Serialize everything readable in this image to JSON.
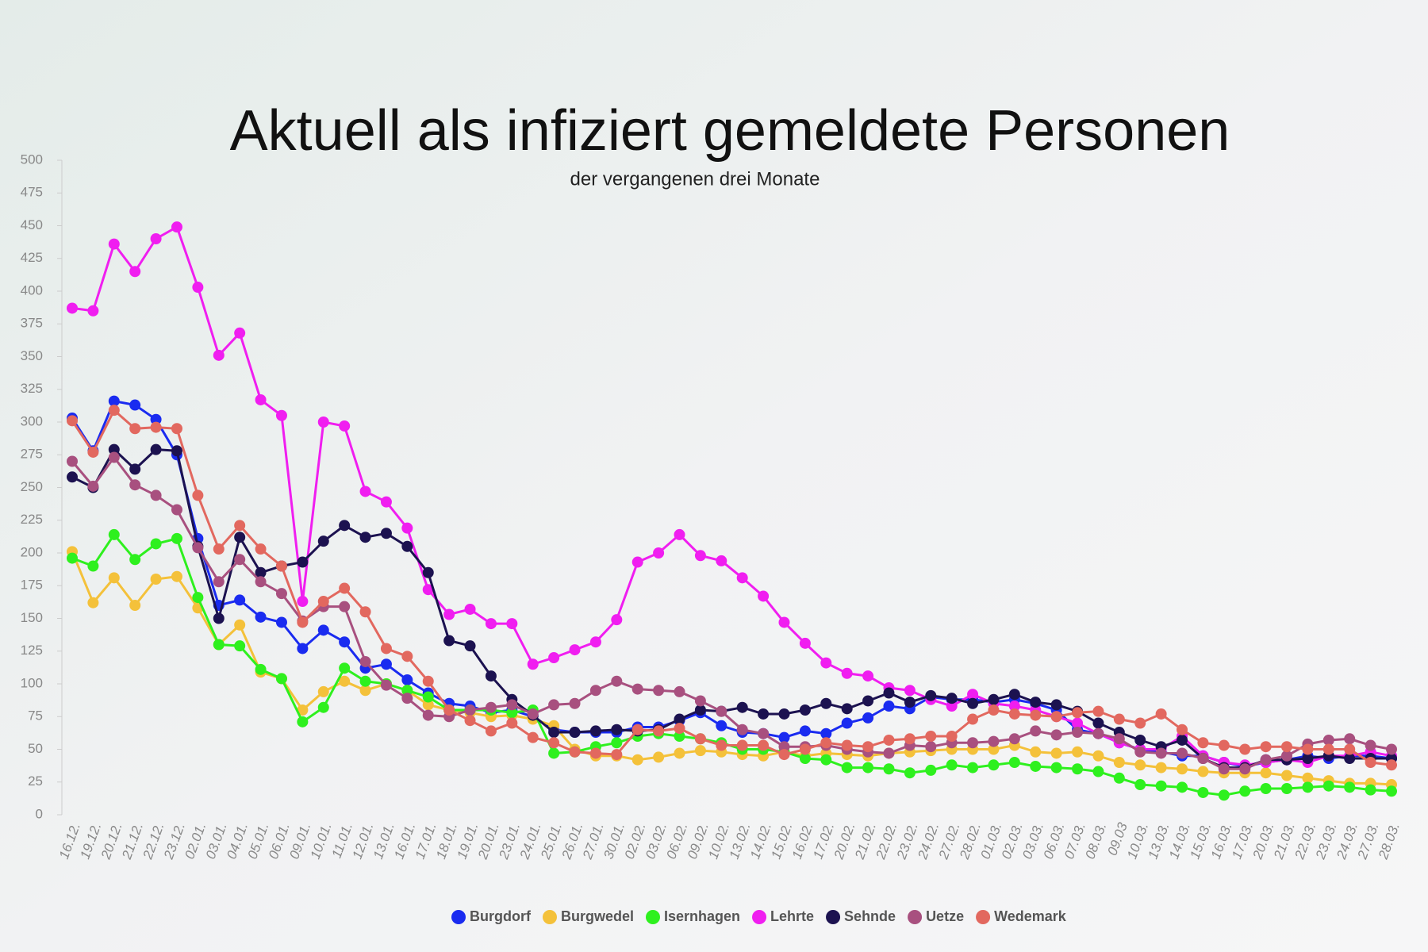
{
  "chart_data": {
    "type": "line",
    "title": "Aktuell als infiziert gemeldete Personen",
    "subtitle": "der vergangenen drei Monate",
    "categories": [
      "16.12.",
      "19.12.",
      "20.12.",
      "21.12.",
      "22.12.",
      "23.12.",
      "02.01.",
      "03.01.",
      "04.01.",
      "05.01.",
      "06.01.",
      "09.01.",
      "10.01.",
      "11.01.",
      "12.01.",
      "13.01.",
      "16.01.",
      "17.01.",
      "18.01.",
      "19.01.",
      "20.01.",
      "23.01.",
      "24.01.",
      "25.01.",
      "26.01.",
      "27.01.",
      "30.01.",
      "02.02.",
      "03.02.",
      "06.02.",
      "09.02.",
      "10.02.",
      "13.02.",
      "14.02.",
      "15.02.",
      "16.02.",
      "17.02.",
      "20.02.",
      "21.02.",
      "22.02.",
      "23.02.",
      "24.02.",
      "27.02.",
      "28.02.",
      "01.03.",
      "02.03.",
      "03.03.",
      "06.03.",
      "07.03.",
      "08.03.",
      "09.03",
      "10.03.",
      "13.03.",
      "14.03.",
      "15.03.",
      "16.03.",
      "17.03.",
      "20.03.",
      "21.03.",
      "22.03.",
      "23.03.",
      "24.03.",
      "27.03.",
      "28.03."
    ],
    "series": [
      {
        "name": "Burgdorf",
        "color": "#1a2bf0",
        "values": [
          303,
          278,
          316,
          313,
          302,
          275,
          211,
          160,
          164,
          151,
          147,
          127,
          141,
          132,
          112,
          115,
          103,
          93,
          85,
          83,
          78,
          80,
          75,
          65,
          63,
          63,
          63,
          67,
          67,
          72,
          78,
          68,
          63,
          62,
          59,
          64,
          62,
          70,
          74,
          83,
          81,
          90,
          88,
          88,
          86,
          88,
          85,
          80,
          65,
          62,
          55,
          50,
          48,
          45,
          45,
          40,
          37,
          40,
          42,
          45,
          43,
          45,
          45,
          43
        ]
      },
      {
        "name": "Burgwedel",
        "color": "#f4c13a",
        "values": [
          201,
          162,
          181,
          160,
          180,
          182,
          158,
          130,
          145,
          109,
          104,
          80,
          94,
          102,
          95,
          100,
          95,
          84,
          80,
          78,
          75,
          76,
          73,
          68,
          50,
          45,
          45,
          42,
          44,
          47,
          49,
          48,
          46,
          45,
          48,
          45,
          47,
          46,
          45,
          47,
          48,
          49,
          50,
          50,
          50,
          53,
          48,
          47,
          48,
          45,
          40,
          38,
          36,
          35,
          33,
          32,
          32,
          32,
          30,
          28,
          26,
          24,
          24,
          23
        ]
      },
      {
        "name": "Isernhagen",
        "color": "#2ef01e",
        "values": [
          196,
          190,
          214,
          195,
          207,
          211,
          166,
          130,
          129,
          111,
          104,
          71,
          82,
          112,
          102,
          100,
          95,
          90,
          80,
          80,
          80,
          78,
          80,
          47,
          48,
          52,
          55,
          60,
          62,
          60,
          58,
          55,
          50,
          50,
          48,
          43,
          42,
          36,
          36,
          35,
          32,
          34,
          38,
          36,
          38,
          40,
          37,
          36,
          35,
          33,
          28,
          23,
          22,
          21,
          17,
          15,
          18,
          20,
          20,
          21,
          22,
          21,
          19,
          18
        ]
      },
      {
        "name": "Lehrte",
        "color": "#f01ef0",
        "values": [
          387,
          385,
          436,
          415,
          440,
          449,
          403,
          351,
          368,
          317,
          305,
          163,
          300,
          297,
          247,
          239,
          219,
          172,
          153,
          157,
          146,
          146,
          115,
          120,
          126,
          132,
          149,
          193,
          200,
          214,
          198,
          194,
          181,
          167,
          147,
          131,
          116,
          108,
          106,
          97,
          95,
          88,
          83,
          92,
          85,
          83,
          80,
          75,
          70,
          62,
          55,
          50,
          50,
          60,
          45,
          40,
          38,
          40,
          42,
          40,
          45,
          45,
          48,
          45
        ]
      },
      {
        "name": "Sehnde",
        "color": "#1c1250",
        "values": [
          258,
          250,
          279,
          264,
          279,
          278,
          205,
          150,
          212,
          185,
          190,
          193,
          209,
          221,
          212,
          215,
          205,
          185,
          133,
          129,
          106,
          88,
          76,
          63,
          63,
          64,
          65,
          64,
          65,
          73,
          80,
          79,
          82,
          77,
          77,
          80,
          85,
          81,
          87,
          93,
          86,
          91,
          89,
          85,
          88,
          92,
          86,
          84,
          79,
          70,
          63,
          57,
          52,
          57,
          43,
          36,
          36,
          42,
          42,
          43,
          45,
          43,
          43,
          43
        ]
      },
      {
        "name": "Uetze",
        "color": "#a8507f",
        "values": [
          270,
          251,
          273,
          252,
          244,
          233,
          204,
          178,
          195,
          178,
          169,
          148,
          159,
          159,
          117,
          99,
          89,
          76,
          75,
          80,
          82,
          84,
          77,
          84,
          85,
          95,
          102,
          96,
          95,
          94,
          87,
          79,
          65,
          62,
          52,
          52,
          53,
          50,
          48,
          47,
          53,
          52,
          55,
          55,
          56,
          58,
          64,
          61,
          63,
          62,
          58,
          48,
          47,
          47,
          43,
          35,
          35,
          42,
          45,
          54,
          57,
          58,
          53,
          50
        ]
      },
      {
        "name": "Wedemark",
        "color": "#e2685f",
        "values": [
          301,
          277,
          309,
          295,
          296,
          295,
          244,
          203,
          221,
          203,
          190,
          147,
          163,
          173,
          155,
          127,
          121,
          102,
          80,
          72,
          64,
          70,
          59,
          55,
          48,
          47,
          46,
          65,
          64,
          66,
          58,
          53,
          53,
          53,
          46,
          50,
          55,
          53,
          52,
          57,
          58,
          60,
          60,
          73,
          80,
          77,
          76,
          75,
          78,
          79,
          73,
          70,
          77,
          65,
          55,
          53,
          50,
          52,
          52,
          50,
          50,
          50,
          40,
          38
        ]
      }
    ],
    "ylim": [
      0,
      500
    ],
    "yticks": [
      0,
      25,
      50,
      75,
      100,
      125,
      150,
      175,
      200,
      225,
      250,
      275,
      300,
      325,
      350,
      375,
      400,
      425,
      450,
      475,
      500
    ],
    "legend": "bottom"
  }
}
